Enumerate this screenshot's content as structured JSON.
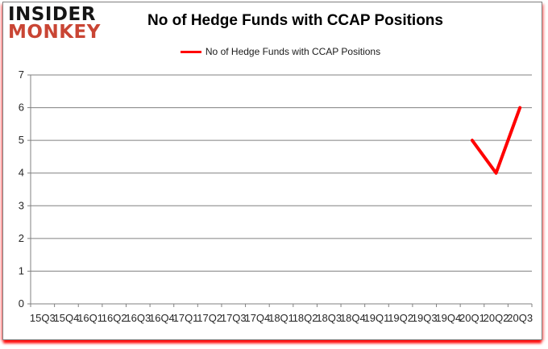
{
  "logo": {
    "line1": "INSIDER",
    "line2": "MONKEY"
  },
  "header": {
    "title": "No of Hedge Funds with CCAP Positions"
  },
  "legend": {
    "label": "No of Hedge Funds with CCAP Positions",
    "color": "#ff0000"
  },
  "colors": {
    "series_red": "#ff0000",
    "logo_black": "#151515",
    "logo_red": "#c94534",
    "grid_gray": "#808080",
    "label_color": "#262626",
    "frame_border": "#7f7f7f",
    "shadow_red": "#ff0000"
  },
  "chart_data": {
    "type": "line",
    "title": "No of Hedge Funds with CCAP Positions",
    "categories": [
      "15Q3",
      "15Q4",
      "16Q1",
      "16Q2",
      "16Q3",
      "16Q4",
      "17Q1",
      "17Q2",
      "17Q3",
      "17Q4",
      "18Q1",
      "18Q2",
      "18Q3",
      "18Q4",
      "19Q1",
      "19Q2",
      "19Q3",
      "19Q4",
      "20Q1",
      "20Q2",
      "20Q3"
    ],
    "series": [
      {
        "name": "No of Hedge Funds with CCAP Positions",
        "color": "#ff0000",
        "values": [
          null,
          null,
          null,
          null,
          null,
          null,
          null,
          null,
          null,
          null,
          null,
          null,
          null,
          null,
          null,
          null,
          null,
          null,
          5,
          4,
          6
        ]
      }
    ],
    "xlabel": "",
    "ylabel": "",
    "ylim": [
      0,
      7
    ],
    "y_ticks": [
      0,
      1,
      2,
      3,
      4,
      5,
      6,
      7
    ],
    "grid": true,
    "legend_position": "top-center"
  }
}
